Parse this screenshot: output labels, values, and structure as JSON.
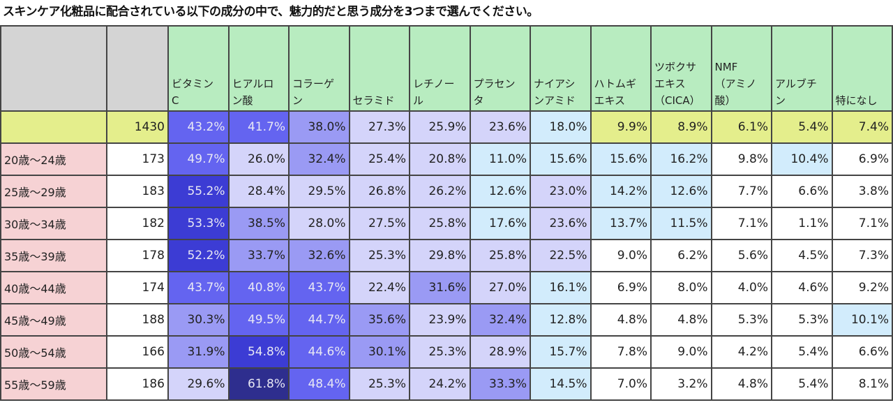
{
  "title": "スキンケア化粧品に配合されている以下の成分の中で、魅力的だと思う成分を3つまで選んでください。",
  "chart_data": {
    "type": "table",
    "title": "スキンケア化粧品に配合されている以下の成分の中で、魅力的だと思う成分を3つまで選んでください。",
    "columns": [
      "ビタミンC",
      "ヒアルロン酸",
      "コラーゲン",
      "セラミド",
      "レチノール",
      "プラセンタ",
      "ナイアシンアミド",
      "ハトムギエキス",
      "ツボクサエキス（CICA）",
      "NMF（アミノ酸）",
      "アルブチン",
      "特になし"
    ],
    "header_lines": [
      [
        "ビタミン",
        "C"
      ],
      [
        "ヒアルロ",
        "ン酸"
      ],
      [
        "コラーゲ",
        "ン"
      ],
      [
        "セラミド"
      ],
      [
        "レチノー",
        "ル"
      ],
      [
        "プラセン",
        "タ"
      ],
      [
        "ナイアシ",
        "ンアミド"
      ],
      [
        "ハトムギ",
        "エキス"
      ],
      [
        "ツボクサ",
        "エキス",
        "（ＣＩ",
        "ＣＡ）"
      ],
      [
        "ＮＭＦ",
        "（アミノ",
        "酸）"
      ],
      [
        "アルブチ",
        "ン"
      ],
      [
        "特になし"
      ]
    ],
    "total": {
      "label": "",
      "n": "1430",
      "values": [
        "43.2%",
        "41.7%",
        "38.0%",
        "27.3%",
        "25.9%",
        "23.6%",
        "18.0%",
        "9.9%",
        "8.9%",
        "6.1%",
        "5.4%",
        "7.4%"
      ]
    },
    "rows": [
      {
        "label": "20歳～24歳",
        "n": "173",
        "values": [
          "49.7%",
          "26.0%",
          "32.4%",
          "25.4%",
          "20.8%",
          "11.0%",
          "15.6%",
          "15.6%",
          "16.2%",
          "9.8%",
          "10.4%",
          "6.9%"
        ]
      },
      {
        "label": "25歳～29歳",
        "n": "183",
        "values": [
          "55.2%",
          "28.4%",
          "29.5%",
          "26.8%",
          "26.2%",
          "12.6%",
          "23.0%",
          "14.2%",
          "12.6%",
          "7.7%",
          "6.6%",
          "3.8%"
        ]
      },
      {
        "label": "30歳～34歳",
        "n": "182",
        "values": [
          "53.3%",
          "38.5%",
          "28.0%",
          "27.5%",
          "25.8%",
          "17.6%",
          "23.6%",
          "13.7%",
          "11.5%",
          "7.1%",
          "1.1%",
          "7.1%"
        ]
      },
      {
        "label": "35歳～39歳",
        "n": "178",
        "values": [
          "52.2%",
          "33.7%",
          "32.6%",
          "25.3%",
          "29.8%",
          "25.8%",
          "22.5%",
          "9.0%",
          "6.2%",
          "5.6%",
          "4.5%",
          "7.3%"
        ]
      },
      {
        "label": "40歳～44歳",
        "n": "174",
        "values": [
          "43.7%",
          "40.8%",
          "43.7%",
          "22.4%",
          "31.6%",
          "27.0%",
          "16.1%",
          "6.9%",
          "8.0%",
          "4.0%",
          "4.6%",
          "9.2%"
        ]
      },
      {
        "label": "45歳～49歳",
        "n": "188",
        "values": [
          "30.3%",
          "49.5%",
          "44.7%",
          "35.6%",
          "23.9%",
          "32.4%",
          "12.8%",
          "4.8%",
          "4.8%",
          "5.3%",
          "5.3%",
          "10.1%"
        ]
      },
      {
        "label": "50歳～54歳",
        "n": "166",
        "values": [
          "31.9%",
          "54.8%",
          "44.6%",
          "30.1%",
          "25.3%",
          "28.9%",
          "15.7%",
          "7.8%",
          "9.0%",
          "4.2%",
          "5.4%",
          "6.6%"
        ]
      },
      {
        "label": "55歳～59歳",
        "n": "186",
        "values": [
          "29.6%",
          "61.8%",
          "48.4%",
          "25.3%",
          "24.2%",
          "33.3%",
          "14.5%",
          "7.0%",
          "3.2%",
          "4.8%",
          "5.4%",
          "8.1%"
        ]
      }
    ],
    "colors": {
      "header": "#b8ecc0",
      "header_blank": "#d4d4d4",
      "total_row": "#e4ee8c",
      "age_label": "#f6d2d4",
      "scale": {
        "60+": "#2e2e8e",
        "50-60": "#3c3cd4",
        "40-50": "#6464f0",
        "30-40": "#9a9af4",
        "20-30": "#d4d4fa",
        "10-20": "#d2ecfc",
        "0-10": "#ffffff"
      }
    }
  }
}
